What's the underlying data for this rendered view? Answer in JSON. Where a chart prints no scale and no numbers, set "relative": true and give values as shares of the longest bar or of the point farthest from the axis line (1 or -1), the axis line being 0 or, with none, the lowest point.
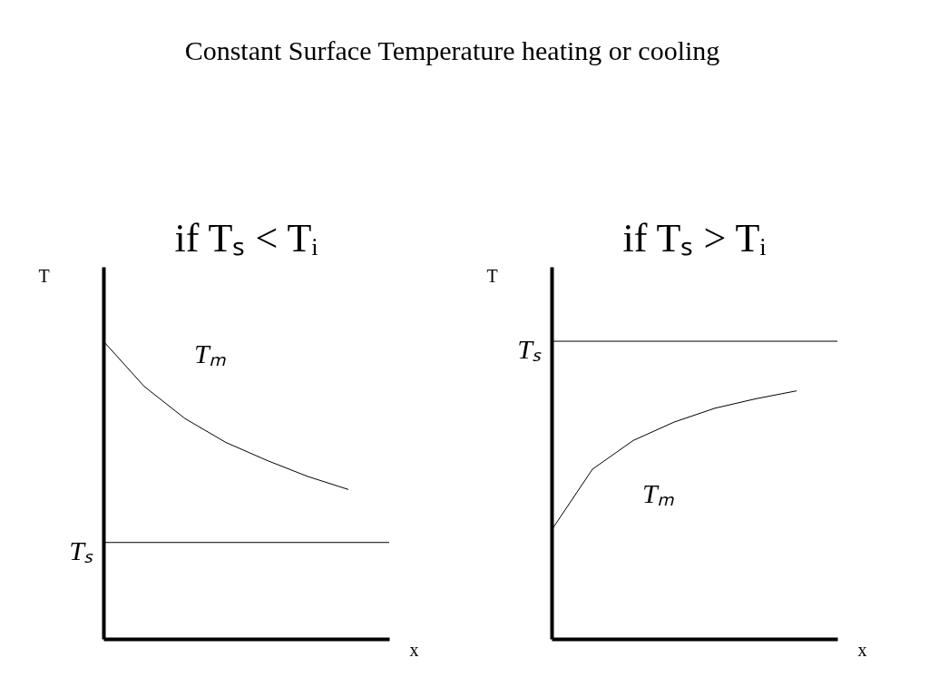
{
  "chart_data": [
    {
      "type": "line",
      "title": "Constant Surface Temperature heating or cooling",
      "subtitle": "if  Tₛ < Tᵢ",
      "xlabel": "x",
      "ylabel": "T",
      "relative": true,
      "categories": [
        null,
        null,
        null,
        null,
        null,
        null,
        null
      ],
      "series": [
        {
          "name": "Tₘ",
          "color": "#000000",
          "values": [
            1,
            0.848,
            0.74,
            0.66,
            0.6,
            0.546,
            0.502
          ]
        }
      ],
      "ref_lines": [
        {
          "axis": "y",
          "value": 0.324,
          "label": "Tₛ"
        }
      ]
    },
    {
      "type": "line",
      "subtitle": "if  Tₛ > Tᵢ",
      "xlabel": "x",
      "ylabel": "T",
      "relative": true,
      "categories": [
        null,
        null,
        null,
        null,
        null,
        null,
        null
      ],
      "series": [
        {
          "name": "Tₘ",
          "color": "#000000",
          "values": [
            0.439,
            0.684,
            0.8,
            0.874,
            0.93,
            0.968,
            1
          ]
        }
      ],
      "ref_lines": [
        {
          "axis": "y",
          "value": 1.2,
          "label": "Tₛ"
        }
      ]
    }
  ]
}
